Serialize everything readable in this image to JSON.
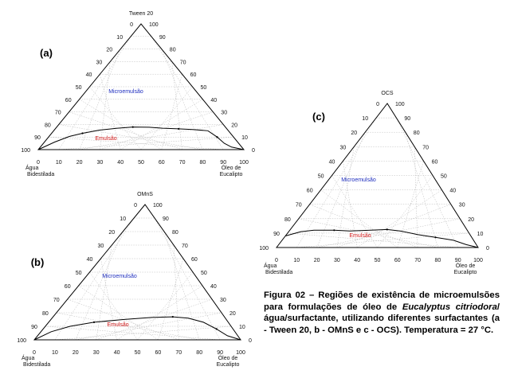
{
  "caption": {
    "prefix": "Figura 02 – Regiões de existência de microemulsões para formulações de óleo de ",
    "species": "Eucalyptus citriodora",
    "suffix": "/água/surfactante, utilizando diferentes surfactantes (a - Tween 20, b - OMnS e c - OCS). Temperatura = 27 °C."
  },
  "colors": {
    "microemulsao": "#1f2fbf",
    "emulsao": "#d11919",
    "frame": "#000000",
    "grid": "#b9b9b9"
  },
  "chart_data": [
    {
      "type": "ternary",
      "panel_label": "(a)",
      "top_vertex": "Tween 20",
      "left_vertex": [
        "Água",
        "Bidestilada"
      ],
      "right_vertex": [
        "Óleo de",
        "Eucalipto"
      ],
      "ticks": [
        0,
        10,
        20,
        30,
        40,
        50,
        60,
        70,
        80,
        90,
        100
      ],
      "regions": {
        "upper": "Microemulsão",
        "lower": "Emulsão"
      },
      "boundary_axes": [
        "oil",
        "surfactant"
      ],
      "boundary": [
        [
          0,
          0
        ],
        [
          5,
          6
        ],
        [
          10,
          10.5
        ],
        [
          15,
          13
        ],
        [
          22,
          15.5
        ],
        [
          30,
          17
        ],
        [
          37,
          18
        ],
        [
          45,
          17.8
        ],
        [
          52,
          17
        ],
        [
          60,
          16.5
        ],
        [
          67,
          16
        ],
        [
          75,
          15
        ],
        [
          82,
          10
        ],
        [
          88,
          5
        ],
        [
          93,
          2
        ],
        [
          100,
          0
        ]
      ]
    },
    {
      "type": "ternary",
      "panel_label": "(b)",
      "top_vertex": "OMnS",
      "left_vertex": [
        "Água",
        "Bidestilada"
      ],
      "right_vertex": [
        "Óleo de",
        "Eucalipto"
      ],
      "ticks": [
        0,
        10,
        20,
        30,
        40,
        50,
        60,
        70,
        80,
        90,
        100
      ],
      "regions": {
        "upper": "Microemulsão",
        "lower": "Emulsão"
      },
      "boundary_axes": [
        "oil",
        "surfactant"
      ],
      "boundary": [
        [
          0,
          0
        ],
        [
          5,
          6
        ],
        [
          12,
          10
        ],
        [
          22,
          13
        ],
        [
          35,
          15
        ],
        [
          48,
          16.5
        ],
        [
          58,
          17
        ],
        [
          66,
          16
        ],
        [
          75,
          13
        ],
        [
          84,
          8
        ],
        [
          92,
          3
        ],
        [
          100,
          0
        ]
      ]
    },
    {
      "type": "ternary",
      "panel_label": "(c)",
      "top_vertex": "OCS",
      "left_vertex": [
        "Água",
        "Bidestilada"
      ],
      "right_vertex": [
        "Óleo de",
        "Eucalipto"
      ],
      "ticks": [
        0,
        10,
        20,
        30,
        40,
        50,
        60,
        70,
        80,
        90,
        100
      ],
      "regions": {
        "upper": "Microemulsão",
        "lower": "Emulsão"
      },
      "boundary_axes": [
        "oil",
        "surfactant"
      ],
      "boundary": [
        [
          0,
          8
        ],
        [
          6,
          11
        ],
        [
          12,
          12
        ],
        [
          22,
          12
        ],
        [
          30,
          11.5
        ],
        [
          40,
          12
        ],
        [
          48,
          12.5
        ],
        [
          55,
          11.5
        ],
        [
          65,
          9
        ],
        [
          75,
          7
        ],
        [
          85,
          5
        ],
        [
          93,
          2
        ],
        [
          100,
          0
        ]
      ]
    }
  ]
}
